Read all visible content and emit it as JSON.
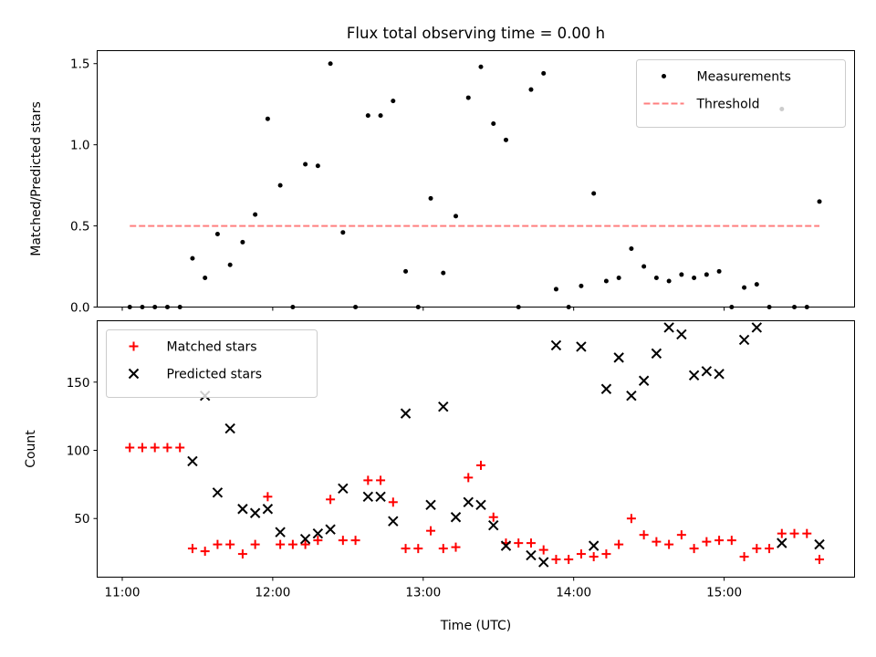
{
  "chart_data": {
    "type": "scatter",
    "title": "Flux total observing time = 0.00 h",
    "xlabel": "Time (UTC)",
    "x_tick_labels": [
      "11:00",
      "12:00",
      "13:00",
      "14:00",
      "15:00"
    ],
    "xlim": [
      "10:50",
      "15:52"
    ],
    "panels": [
      {
        "id": "ratio",
        "ylabel": "Matched/Predicted stars",
        "ylim": [
          0,
          1.58
        ],
        "y_ticks": [
          0.0,
          0.5,
          1.0,
          1.5
        ],
        "y_tick_labels": [
          "0.0",
          "0.5",
          "1.0",
          "1.5"
        ],
        "legend_position": "upper right",
        "series": [
          {
            "name": "Measurements",
            "kind": "points",
            "color": "#000000",
            "x": [
              "11:03",
              "11:08",
              "11:13",
              "11:18",
              "11:23",
              "11:28",
              "11:33",
              "11:38",
              "11:43",
              "11:48",
              "11:53",
              "11:58",
              "12:03",
              "12:08",
              "12:13",
              "12:18",
              "12:23",
              "12:28",
              "12:33",
              "12:38",
              "12:43",
              "12:48",
              "12:53",
              "12:58",
              "13:03",
              "13:08",
              "13:13",
              "13:18",
              "13:23",
              "13:28",
              "13:33",
              "13:38",
              "13:43",
              "13:48",
              "13:53",
              "13:58",
              "14:03",
              "14:08",
              "14:13",
              "14:18",
              "14:23",
              "14:28",
              "14:33",
              "14:38",
              "14:43",
              "14:48",
              "14:53",
              "14:58",
              "15:03",
              "15:08",
              "15:13",
              "15:18",
              "15:23",
              "15:28",
              "15:33",
              "15:38"
            ],
            "y": [
              0.0,
              0.0,
              0.0,
              0.0,
              0.0,
              0.3,
              0.18,
              0.45,
              0.26,
              0.4,
              0.57,
              1.16,
              0.75,
              0.0,
              0.88,
              0.87,
              1.5,
              0.46,
              0.0,
              1.18,
              1.18,
              1.27,
              0.22,
              0.0,
              0.67,
              0.21,
              0.56,
              1.29,
              1.48,
              1.13,
              1.03,
              0.0,
              1.34,
              1.44,
              0.11,
              0.0,
              0.13,
              0.7,
              0.16,
              0.18,
              0.36,
              0.25,
              0.18,
              0.16,
              0.2,
              0.18,
              0.2,
              0.22,
              0.0,
              0.12,
              0.14,
              0.0,
              1.22,
              0.0,
              0.0,
              0.65
            ]
          },
          {
            "name": "Threshold",
            "kind": "dashed-line",
            "color": "#ff7f7f",
            "x": [
              "11:03",
              "15:38"
            ],
            "y": [
              0.5,
              0.5
            ]
          }
        ]
      },
      {
        "id": "count",
        "ylabel": "Count",
        "ylim": [
          7,
          195
        ],
        "y_ticks": [
          50,
          100,
          150
        ],
        "y_tick_labels": [
          "50",
          "100",
          "150"
        ],
        "legend_position": "upper left",
        "series": [
          {
            "name": "Matched stars",
            "kind": "plus",
            "color": "#ff0000",
            "x": [
              "11:03",
              "11:08",
              "11:13",
              "11:18",
              "11:23",
              "11:28",
              "11:33",
              "11:38",
              "11:43",
              "11:48",
              "11:53",
              "11:58",
              "12:03",
              "12:08",
              "12:13",
              "12:18",
              "12:23",
              "12:28",
              "12:33",
              "12:38",
              "12:43",
              "12:48",
              "12:53",
              "12:58",
              "13:03",
              "13:08",
              "13:13",
              "13:18",
              "13:23",
              "13:28",
              "13:33",
              "13:38",
              "13:43",
              "13:48",
              "13:53",
              "13:58",
              "14:03",
              "14:08",
              "14:13",
              "14:18",
              "14:23",
              "14:28",
              "14:33",
              "14:38",
              "14:43",
              "14:48",
              "14:53",
              "14:58",
              "15:03",
              "15:08",
              "15:13",
              "15:18",
              "15:23",
              "15:28",
              "15:33",
              "15:38"
            ],
            "y": [
              102,
              102,
              102,
              102,
              102,
              28,
              26,
              31,
              31,
              24,
              31,
              66,
              31,
              31,
              31,
              34,
              64,
              34,
              34,
              78,
              78,
              62,
              28,
              28,
              41,
              28,
              29,
              80,
              89,
              51,
              32,
              32,
              32,
              27,
              20,
              20,
              24,
              22,
              24,
              31,
              50,
              38,
              33,
              31,
              38,
              28,
              33,
              34,
              34,
              22,
              28,
              28,
              39,
              39,
              39,
              20
            ]
          },
          {
            "name": "Predicted stars",
            "kind": "cross",
            "color": "#000000",
            "x": [
              "11:28",
              "11:33",
              "11:38",
              "11:43",
              "11:48",
              "11:53",
              "11:58",
              "12:03",
              "12:13",
              "12:18",
              "12:23",
              "12:28",
              "12:38",
              "12:43",
              "12:48",
              "12:53",
              "13:03",
              "13:08",
              "13:13",
              "13:18",
              "13:23",
              "13:28",
              "13:33",
              "13:43",
              "13:48",
              "13:53",
              "14:03",
              "14:08",
              "14:13",
              "14:18",
              "14:23",
              "14:28",
              "14:33",
              "14:38",
              "14:43",
              "14:48",
              "14:53",
              "14:58",
              "15:08",
              "15:13",
              "15:23",
              "15:38"
            ],
            "y": [
              92,
              140,
              69,
              116,
              57,
              54,
              57,
              40,
              35,
              39,
              42,
              72,
              66,
              66,
              48,
              127,
              60,
              132,
              51,
              62,
              60,
              45,
              30,
              23,
              18,
              177,
              176,
              30,
              145,
              168,
              140,
              151,
              171,
              190,
              185,
              155,
              158,
              156,
              181,
              190,
              32,
              31
            ]
          }
        ]
      }
    ]
  }
}
